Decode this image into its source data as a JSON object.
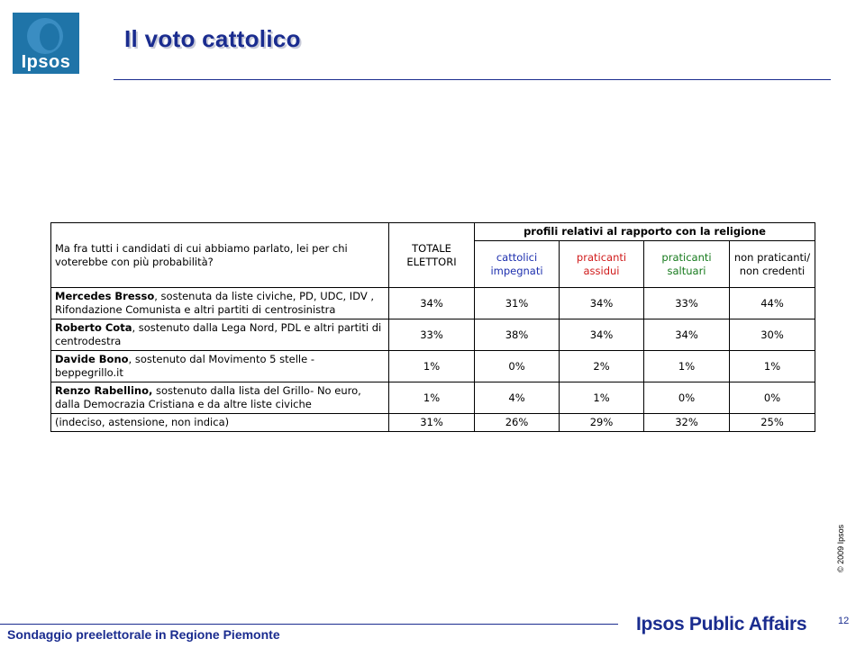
{
  "logo": {
    "text": "Ipsos"
  },
  "title": "Il voto cattolico",
  "table": {
    "question": "Ma fra tutti i candidati di cui abbiamo parlato, lei per chi voterebbe con più probabilità?",
    "total_header": "TOTALE ELETTORI",
    "group_header": "profili relativi al rapporto con la religione",
    "profiles": [
      {
        "label": "cattolici impegnati",
        "color": "#1d2fae"
      },
      {
        "label": "praticanti assidui",
        "color": "#d01a1a"
      },
      {
        "label": "praticanti saltuari",
        "color": "#167a1c"
      },
      {
        "label": "non praticanti/ non credenti",
        "color": "#000000"
      }
    ],
    "rows": [
      {
        "name": "Mercedes Bresso",
        "desc": ", sostenuta da liste civiche, PD, UDC, IDV , Rifondazione Comunista e altri partiti di centrosinistra",
        "values": [
          "34%",
          "31%",
          "34%",
          "33%",
          "44%"
        ]
      },
      {
        "name": "Roberto Cota",
        "desc": ", sostenuto dalla Lega Nord, PDL e altri partiti di centrodestra",
        "values": [
          "33%",
          "38%",
          "34%",
          "34%",
          "30%"
        ]
      },
      {
        "name": "Davide Bono",
        "desc": ", sostenuto dal Movimento 5 stelle - beppegrillo.it",
        "values": [
          "1%",
          "0%",
          "2%",
          "1%",
          "1%"
        ]
      },
      {
        "name": "Renzo Rabellino,",
        "desc": " sostenuto dalla lista del Grillo- No euro, dalla Democrazia Cristiana e da altre liste civiche",
        "values": [
          "1%",
          "4%",
          "1%",
          "0%",
          "0%"
        ]
      },
      {
        "name": "",
        "desc": "(indeciso, astensione, non indica)",
        "values": [
          "31%",
          "26%",
          "29%",
          "32%",
          "25%"
        ]
      }
    ]
  },
  "copyright": "© 2009 Ipsos",
  "footer": {
    "left_text": "Sondaggio preelettorale in Regione Piemonte",
    "brand": "Ipsos Public Affairs",
    "page_number": "12"
  }
}
